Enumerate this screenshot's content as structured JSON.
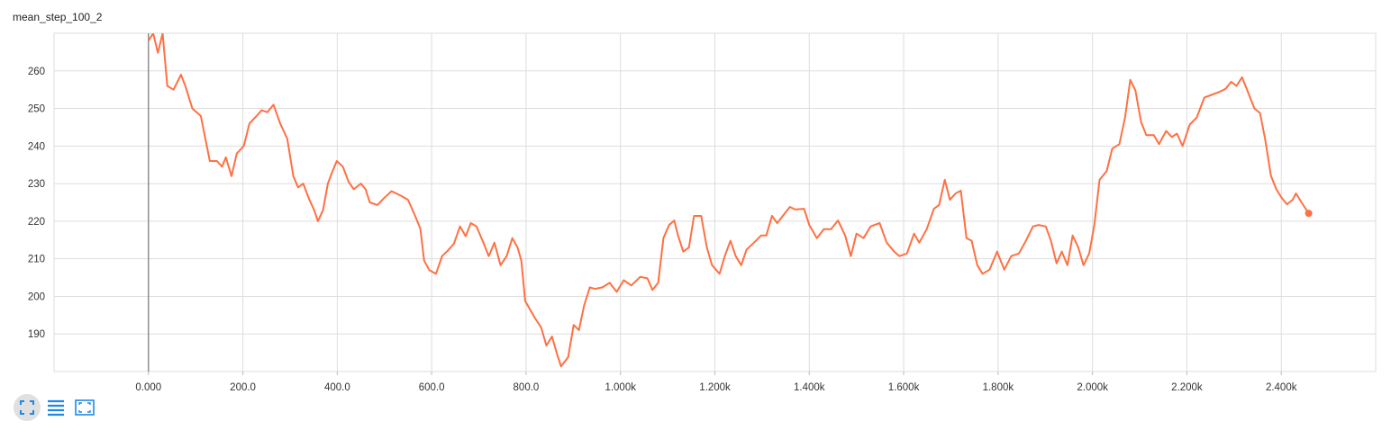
{
  "chart_data": {
    "type": "line",
    "title": "mean_step_100_2",
    "color": "#ff7043",
    "xlim": [
      -200,
      2600
    ],
    "ylim": [
      180,
      270
    ],
    "grid": true,
    "xticks": [
      {
        "value": 0,
        "label": "0.000"
      },
      {
        "value": 200,
        "label": "200.0"
      },
      {
        "value": 400,
        "label": "400.0"
      },
      {
        "value": 600,
        "label": "600.0"
      },
      {
        "value": 800,
        "label": "800.0"
      },
      {
        "value": 1000,
        "label": "1.000k"
      },
      {
        "value": 1200,
        "label": "1.200k"
      },
      {
        "value": 1400,
        "label": "1.400k"
      },
      {
        "value": 1600,
        "label": "1.600k"
      },
      {
        "value": 1800,
        "label": "1.800k"
      },
      {
        "value": 2000,
        "label": "2.000k"
      },
      {
        "value": 2200,
        "label": "2.200k"
      },
      {
        "value": 2400,
        "label": "2.400k"
      }
    ],
    "yticks": [
      190,
      200,
      210,
      220,
      230,
      240,
      250,
      260
    ],
    "x": [
      0,
      10,
      20,
      30,
      40,
      53,
      69,
      78,
      93,
      111,
      130,
      145,
      156,
      164,
      176,
      187,
      202,
      214,
      229,
      240,
      252,
      265,
      279,
      294,
      307,
      317,
      328,
      340,
      351,
      359,
      370,
      380,
      389,
      399,
      412,
      424,
      435,
      450,
      460,
      469,
      485,
      498,
      515,
      536,
      550,
      565,
      576,
      584,
      595,
      609,
      622,
      633,
      647,
      660,
      672,
      683,
      695,
      708,
      721,
      733,
      746,
      759,
      771,
      782,
      790,
      798,
      809,
      820,
      832,
      843,
      855,
      866,
      874,
      889,
      901,
      912,
      923,
      935,
      946,
      962,
      977,
      992,
      1007,
      1023,
      1042,
      1057,
      1068,
      1080,
      1091,
      1103,
      1114,
      1122,
      1133,
      1145,
      1156,
      1171,
      1183,
      1194,
      1210,
      1221,
      1233,
      1244,
      1256,
      1267,
      1283,
      1298,
      1309,
      1321,
      1332,
      1347,
      1359,
      1370,
      1389,
      1400,
      1416,
      1431,
      1446,
      1461,
      1476,
      1488,
      1500,
      1515,
      1530,
      1549,
      1564,
      1580,
      1591,
      1607,
      1622,
      1633,
      1649,
      1664,
      1675,
      1687,
      1698,
      1710,
      1721,
      1733,
      1744,
      1756,
      1767,
      1782,
      1798,
      1813,
      1828,
      1844,
      1859,
      1874,
      1886,
      1901,
      1912,
      1924,
      1935,
      1947,
      1958,
      1970,
      1981,
      1993,
      2004,
      2015,
      2030,
      2042,
      2057,
      2069,
      2080,
      2091,
      2103,
      2114,
      2130,
      2141,
      2156,
      2168,
      2179,
      2191,
      2206,
      2221,
      2237,
      2252,
      2267,
      2282,
      2294,
      2305,
      2317,
      2328,
      2343,
      2355,
      2366,
      2378,
      2389,
      2401,
      2412,
      2424,
      2431,
      2443,
      2458
    ],
    "values": [
      268,
      270,
      264.8,
      270,
      256,
      255,
      259,
      256,
      250,
      248,
      236,
      236,
      234.5,
      237,
      232,
      238,
      240,
      246,
      248,
      249.5,
      249,
      251,
      246,
      242,
      232,
      229,
      230,
      226,
      223,
      220,
      223,
      230,
      233,
      236,
      234.5,
      230.5,
      228.5,
      230,
      228.5,
      225,
      224.3,
      226,
      228,
      226.7,
      225.7,
      221.4,
      218,
      209.5,
      207,
      206,
      210.7,
      212,
      214,
      218.6,
      216,
      219.5,
      218.6,
      214.8,
      210.7,
      214.3,
      208.3,
      210.7,
      215.5,
      213,
      209.5,
      198.8,
      196.4,
      194,
      191.7,
      186.9,
      189.3,
      184.5,
      181.4,
      183.8,
      192.4,
      191,
      197.6,
      202.4,
      202,
      202.4,
      203.6,
      201.2,
      204.3,
      202.9,
      205.2,
      204.8,
      201.7,
      203.6,
      215.5,
      219,
      220.2,
      216.2,
      211.9,
      213,
      221.4,
      221.4,
      213,
      208.3,
      206,
      210.7,
      214.8,
      210.7,
      208.3,
      212.4,
      214.3,
      216.2,
      216.2,
      221.4,
      219.5,
      221.9,
      223.8,
      223.1,
      223.3,
      219,
      215.5,
      217.9,
      217.9,
      220.2,
      216.2,
      210.7,
      216.7,
      215.5,
      218.6,
      219.5,
      214.3,
      211.9,
      210.7,
      211.4,
      216.7,
      214.3,
      217.9,
      223.3,
      224.3,
      231,
      225.7,
      227.4,
      228.1,
      215.5,
      214.8,
      208.3,
      206,
      207.1,
      211.9,
      207.1,
      210.7,
      211.4,
      214.8,
      218.6,
      219,
      218.6,
      214.8,
      208.8,
      211.9,
      208.3,
      216.2,
      213,
      208.3,
      211.4,
      219,
      231,
      233.3,
      239.3,
      240.5,
      247.6,
      257.6,
      254.8,
      246.4,
      242.9,
      242.9,
      240.5,
      244,
      242.4,
      243.3,
      240,
      245.7,
      247.6,
      252.9,
      253.6,
      254.3,
      255.2,
      257.1,
      256,
      258.3,
      254.8,
      250,
      248.8,
      241.7,
      232.1,
      228.6,
      226.2,
      224.5,
      225.7,
      227.4,
      225,
      222.1
    ]
  }
}
